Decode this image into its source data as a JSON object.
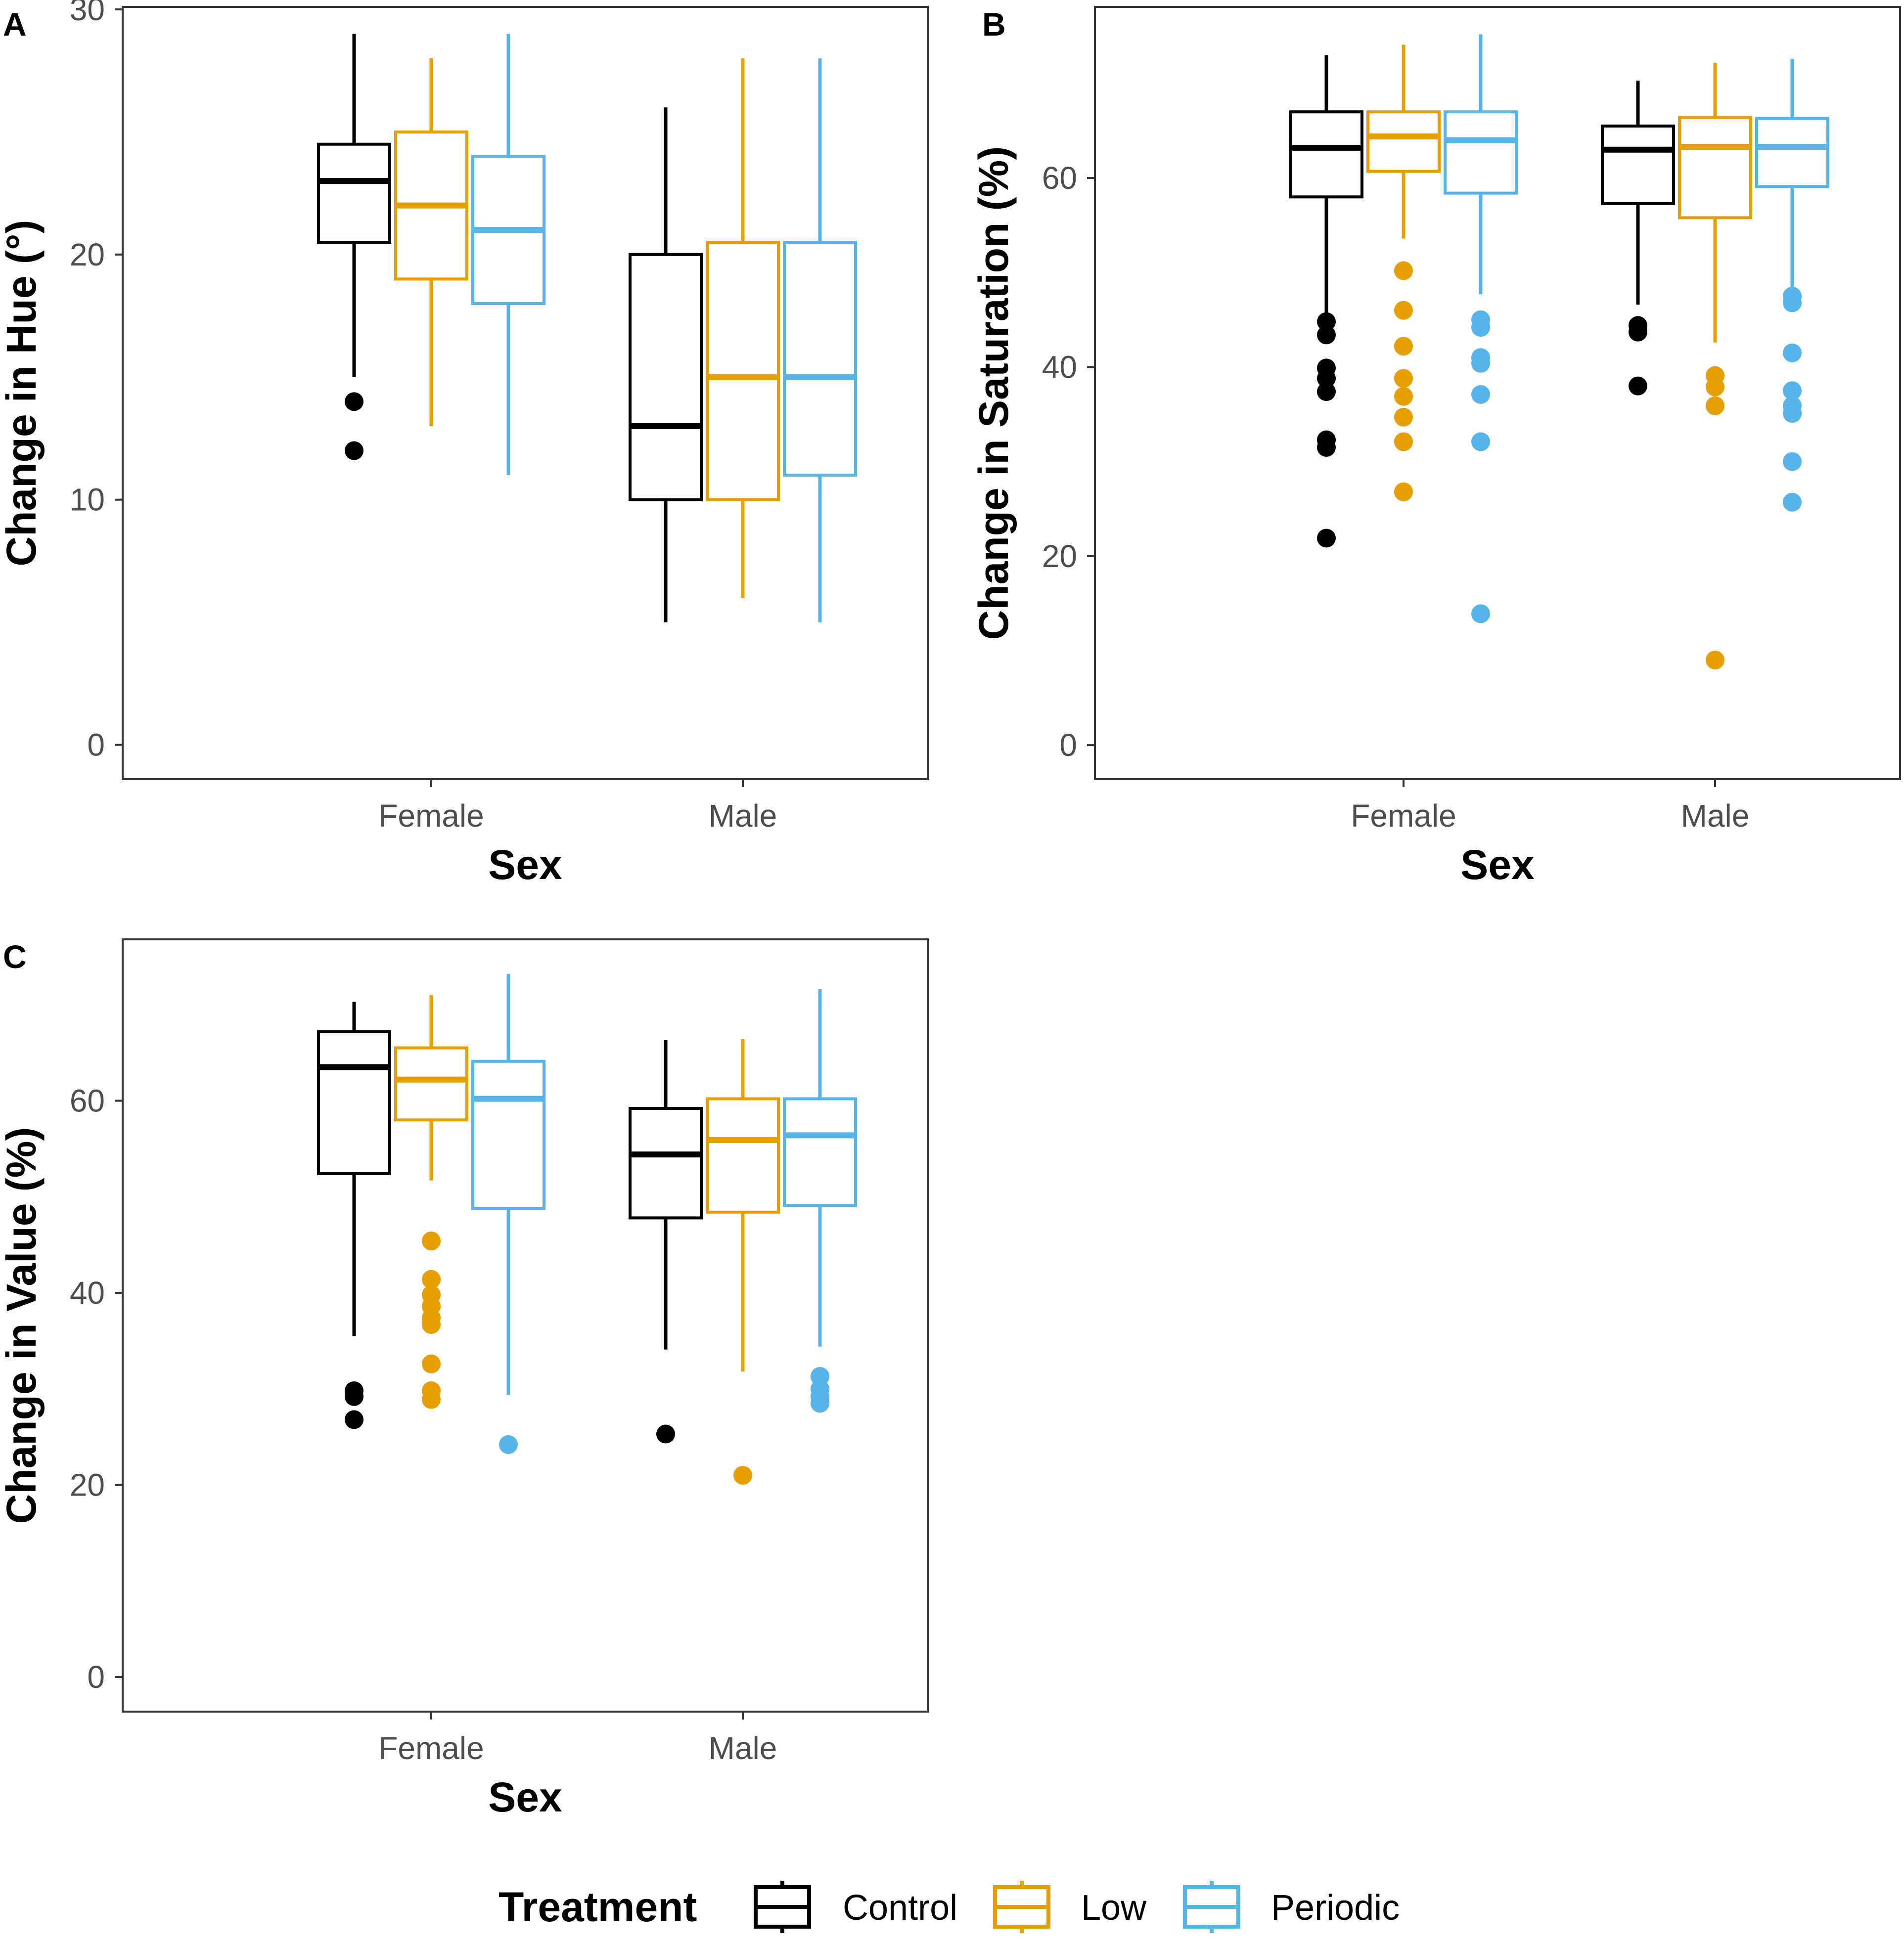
{
  "chart_data": [
    {
      "panel": "A",
      "type": "boxplot",
      "xlabel": "Sex",
      "ylabel": "Change in Hue (°)",
      "ylim": [
        -1.4,
        30.1
      ],
      "yticks": [
        0,
        10,
        20,
        30
      ],
      "categories": [
        "Female",
        "Male"
      ],
      "series": [
        {
          "name": "Control",
          "boxes": [
            {
              "min": 15,
              "q1": 20.5,
              "median": 23,
              "q3": 24.5,
              "max": 29,
              "outliers": [
                14,
                12
              ]
            },
            {
              "min": 5,
              "q1": 10,
              "median": 13,
              "q3": 20,
              "max": 26,
              "outliers": []
            }
          ]
        },
        {
          "name": "Low",
          "boxes": [
            {
              "min": 13,
              "q1": 19,
              "median": 22,
              "q3": 25,
              "max": 28,
              "outliers": []
            },
            {
              "min": 6,
              "q1": 10,
              "median": 15,
              "q3": 20.5,
              "max": 28,
              "outliers": []
            }
          ]
        },
        {
          "name": "Periodic",
          "boxes": [
            {
              "min": 11,
              "q1": 18,
              "median": 21,
              "q3": 24,
              "max": 29,
              "outliers": []
            },
            {
              "min": 5,
              "q1": 11,
              "median": 15,
              "q3": 20.5,
              "max": 28,
              "outliers": []
            }
          ]
        }
      ]
    },
    {
      "panel": "B",
      "type": "boxplot",
      "xlabel": "Sex",
      "ylabel": "Change in Saturation (%)",
      "ylim": [
        -3.6,
        78.1
      ],
      "yticks": [
        0,
        20,
        40,
        60
      ],
      "categories": [
        "Female",
        "Male"
      ],
      "series": [
        {
          "name": "Control",
          "boxes": [
            {
              "min": 45.5,
              "q1": 58,
              "median": 63.2,
              "q3": 67,
              "max": 73,
              "outliers": [
                44.8,
                43.4,
                39.9,
                38.8,
                37.4,
                32.3,
                31.5,
                21.9
              ]
            },
            {
              "min": 46.6,
              "q1": 57.3,
              "median": 63,
              "q3": 65.5,
              "max": 70.3,
              "outliers": [
                44.4,
                43.7,
                38.0
              ]
            }
          ]
        },
        {
          "name": "Low",
          "boxes": [
            {
              "min": 53.6,
              "q1": 60.7,
              "median": 64.4,
              "q3": 67,
              "max": 74.1,
              "outliers": [
                50.2,
                46.0,
                42.2,
                38.8,
                36.9,
                34.7,
                32.1,
                26.8
              ]
            },
            {
              "min": 42.6,
              "q1": 55.8,
              "median": 63.3,
              "q3": 66.4,
              "max": 72.2,
              "outliers": [
                39.1,
                37.9,
                35.9,
                9.0
              ]
            }
          ]
        },
        {
          "name": "Periodic",
          "boxes": [
            {
              "min": 47.7,
              "q1": 58.4,
              "median": 64,
              "q3": 67,
              "max": 75.2,
              "outliers": [
                45.0,
                44.2,
                41.0,
                40.4,
                37.1,
                32.1,
                13.9
              ]
            },
            {
              "min": 48.5,
              "q1": 59.1,
              "median": 63.3,
              "q3": 66.3,
              "max": 72.6,
              "outliers": [
                47.5,
                46.8,
                41.5,
                37.5,
                35.9,
                35.1,
                30.0,
                25.7
              ]
            }
          ]
        }
      ]
    },
    {
      "panel": "C",
      "type": "boxplot",
      "xlabel": "Sex",
      "ylabel": "Change in Value (%)",
      "ylim": [
        -3.6,
        76.8
      ],
      "yticks": [
        0,
        20,
        40,
        60
      ],
      "categories": [
        "Female",
        "Male"
      ],
      "series": [
        {
          "name": "Control",
          "boxes": [
            {
              "min": 35.5,
              "q1": 52.4,
              "median": 63.5,
              "q3": 67.2,
              "max": 70.3,
              "outliers": [
                29.8,
                29.2,
                26.8
              ]
            },
            {
              "min": 34.1,
              "q1": 47.8,
              "median": 54.4,
              "q3": 59.2,
              "max": 66.3,
              "outliers": [
                25.3
              ]
            }
          ]
        },
        {
          "name": "Low",
          "boxes": [
            {
              "min": 51.7,
              "q1": 58.0,
              "median": 62.2,
              "q3": 65.5,
              "max": 71.0,
              "outliers": [
                45.4,
                41.4,
                39.8,
                38.6,
                37.4,
                36.7,
                32.6,
                29.8,
                28.9
              ]
            },
            {
              "min": 31.8,
              "q1": 48.4,
              "median": 55.9,
              "q3": 60.2,
              "max": 66.4,
              "outliers": [
                21.0
              ]
            }
          ]
        },
        {
          "name": "Periodic",
          "boxes": [
            {
              "min": 29.4,
              "q1": 48.8,
              "median": 60.2,
              "q3": 64.1,
              "max": 73.2,
              "outliers": [
                24.2
              ]
            },
            {
              "min": 34.4,
              "q1": 49.1,
              "median": 56.4,
              "q3": 60.2,
              "max": 71.6,
              "outliers": [
                31.3,
                30.0,
                29.2,
                28.5
              ]
            }
          ]
        }
      ]
    }
  ],
  "legend": {
    "title": "Treatment",
    "items": [
      {
        "label": "Control",
        "color": "#000000"
      },
      {
        "label": "Low",
        "color": "#E69F00"
      },
      {
        "label": "Periodic",
        "color": "#56B4E9"
      }
    ]
  }
}
